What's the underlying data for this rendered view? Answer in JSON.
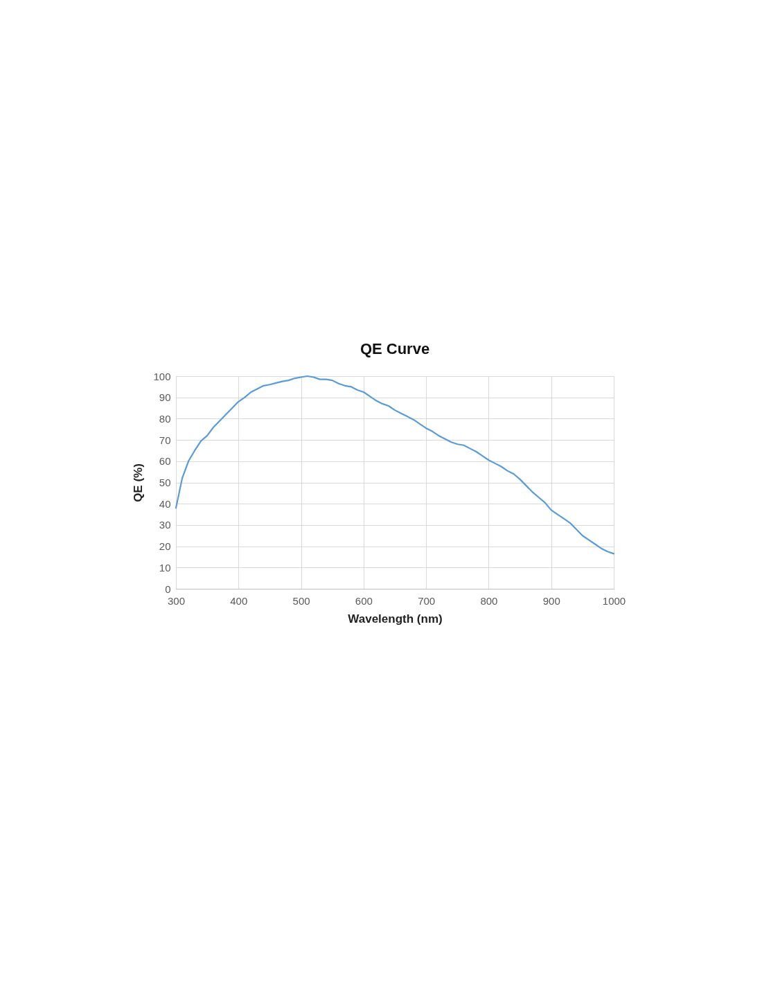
{
  "chart_data": {
    "type": "line",
    "title": "QE Curve",
    "xlabel": "Wavelength (nm)",
    "ylabel": "QE (%)",
    "x": [
      300,
      310,
      320,
      330,
      340,
      350,
      360,
      370,
      380,
      390,
      400,
      410,
      420,
      430,
      440,
      450,
      460,
      470,
      480,
      490,
      500,
      510,
      520,
      530,
      540,
      550,
      560,
      570,
      580,
      590,
      600,
      610,
      620,
      630,
      640,
      650,
      660,
      670,
      680,
      690,
      700,
      710,
      720,
      730,
      740,
      750,
      760,
      770,
      780,
      790,
      800,
      810,
      820,
      830,
      840,
      850,
      860,
      870,
      880,
      890,
      900,
      910,
      920,
      930,
      940,
      950,
      960,
      970,
      980,
      990,
      1000
    ],
    "series": [
      {
        "color": "#5b9bd5",
        "values": [
          38,
          52,
          60,
          65,
          69.5,
          72,
          76,
          79,
          82,
          85,
          88,
          90,
          92.5,
          94,
          95.5,
          96,
          96.8,
          97.5,
          98,
          99,
          99.5,
          100,
          99.5,
          98.5,
          98.5,
          98,
          96.5,
          95.5,
          95,
          93.5,
          92.5,
          90.5,
          88.5,
          87,
          86,
          84,
          82.5,
          81,
          79.5,
          77.5,
          75.5,
          74,
          72,
          70.5,
          69,
          68,
          67.5,
          66,
          64.5,
          62.5,
          60.5,
          59,
          57.5,
          55.5,
          54,
          51.5,
          48.5,
          45.5,
          43,
          40.5,
          37,
          35,
          33,
          31,
          28,
          25,
          23,
          21,
          19,
          17.5,
          16.5
        ]
      }
    ],
    "xlim": [
      300,
      1000
    ],
    "xticks": [
      300,
      400,
      500,
      600,
      700,
      800,
      900,
      1000
    ],
    "ylim": [
      0,
      100
    ],
    "yticks": [
      0,
      10,
      20,
      30,
      40,
      50,
      60,
      70,
      80,
      90,
      100
    ],
    "grid": true,
    "legend": false,
    "marker": "none",
    "line_style": "solid"
  }
}
